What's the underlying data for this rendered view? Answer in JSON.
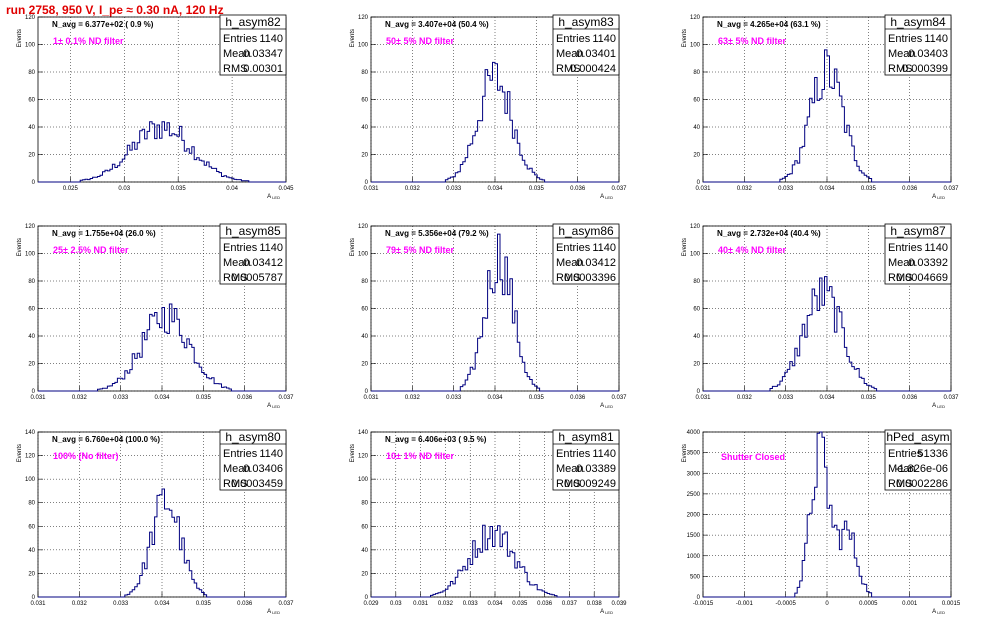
{
  "title": "run 2758,   950 V, I_pe ≈ 0.30 nA, 120 Hz",
  "colors": {
    "title": "#e00000",
    "annotation": "#ff00ff",
    "histogram": "#000080",
    "grid": "#000000"
  },
  "chart_data": [
    {
      "type": "histogram",
      "name": "h_asym82",
      "navg": "N_avg = 6.377e+02 ( 0.9 %)",
      "annotation": "1± 0.1% ND filter",
      "stats": {
        "entries": "1140",
        "mean": "0.03347",
        "rms": "0.00301"
      },
      "xlabel": "A_LED",
      "ylabel": "Events",
      "xlim": [
        0.022,
        0.045
      ],
      "ylim": [
        0,
        120
      ],
      "xticks": [
        "0.025",
        "0.03",
        "0.035",
        "0.04",
        "0.045"
      ],
      "xtick_values": [
        0.025,
        0.03,
        0.035,
        0.04,
        0.045
      ],
      "yticks": [
        "0",
        "20",
        "40",
        "60",
        "80",
        "100",
        "120"
      ],
      "ytick_values": [
        0,
        20,
        40,
        60,
        80,
        100,
        120
      ],
      "grid": true,
      "peak_center": 0.0335,
      "peak_width": 0.0028,
      "peak_height": 40
    },
    {
      "type": "histogram",
      "name": "h_asym83",
      "navg": "N_avg = 3.407e+04 (50.4 %)",
      "annotation": "50± 5% ND filter",
      "stats": {
        "entries": "1140",
        "mean": "0.03401",
        "rms": "0.000424"
      },
      "xlabel": "A_LED",
      "ylabel": "Events",
      "xlim": [
        0.031,
        0.037
      ],
      "ylim": [
        0,
        120
      ],
      "xticks": [
        "0.031",
        "0.032",
        "0.033",
        "0.034",
        "0.035",
        "0.036",
        "0.037"
      ],
      "xtick_values": [
        0.031,
        0.032,
        0.033,
        0.034,
        0.035,
        0.036,
        0.037
      ],
      "yticks": [
        "0",
        "20",
        "40",
        "60",
        "80",
        "100",
        "120"
      ],
      "ytick_values": [
        0,
        20,
        40,
        60,
        80,
        100,
        120
      ],
      "grid": true,
      "peak_center": 0.034,
      "peak_width": 0.00042,
      "peak_height": 75
    },
    {
      "type": "histogram",
      "name": "h_asym84",
      "navg": "N_avg = 4.265e+04 (63.1 %)",
      "annotation": "63± 5% ND filter",
      "stats": {
        "entries": "1140",
        "mean": "0.03403",
        "rms": "0.000399"
      },
      "xlabel": "A_LED",
      "ylabel": "Events",
      "xlim": [
        0.031,
        0.037
      ],
      "ylim": [
        0,
        120
      ],
      "xticks": [
        "0.031",
        "0.032",
        "0.033",
        "0.034",
        "0.035",
        "0.036",
        "0.037"
      ],
      "xtick_values": [
        0.031,
        0.032,
        0.033,
        0.034,
        0.035,
        0.036,
        0.037
      ],
      "yticks": [
        "0",
        "20",
        "40",
        "60",
        "80",
        "100",
        "120"
      ],
      "ytick_values": [
        0,
        20,
        40,
        60,
        80,
        100,
        120
      ],
      "grid": true,
      "peak_center": 0.034,
      "peak_width": 0.0004,
      "peak_height": 80
    },
    {
      "type": "histogram",
      "name": "h_asym85",
      "navg": "N_avg = 1.755e+04 (26.0 %)",
      "annotation": "25± 2.5% ND filter",
      "stats": {
        "entries": "1140",
        "mean": "0.03412",
        "rms": "0.0005787"
      },
      "xlabel": "A_LED",
      "ylabel": "Events",
      "xlim": [
        0.031,
        0.037
      ],
      "ylim": [
        0,
        120
      ],
      "xticks": [
        "0.031",
        "0.032",
        "0.033",
        "0.034",
        "0.035",
        "0.036",
        "0.037"
      ],
      "xtick_values": [
        0.031,
        0.032,
        0.033,
        0.034,
        0.035,
        0.036,
        0.037
      ],
      "yticks": [
        "0",
        "20",
        "40",
        "60",
        "80",
        "100",
        "120"
      ],
      "ytick_values": [
        0,
        20,
        40,
        60,
        80,
        100,
        120
      ],
      "grid": true,
      "peak_center": 0.0341,
      "peak_width": 0.00058,
      "peak_height": 55
    },
    {
      "type": "histogram",
      "name": "h_asym86",
      "navg": "N_avg = 5.356e+04 (79.2 %)",
      "annotation": "79± 5% ND filter",
      "stats": {
        "entries": "1140",
        "mean": "0.03412",
        "rms": "0.0003396"
      },
      "xlabel": "A_LED",
      "ylabel": "Events",
      "xlim": [
        0.031,
        0.037
      ],
      "ylim": [
        0,
        120
      ],
      "xticks": [
        "0.031",
        "0.032",
        "0.033",
        "0.034",
        "0.035",
        "0.036",
        "0.037"
      ],
      "xtick_values": [
        0.031,
        0.032,
        0.033,
        0.034,
        0.035,
        0.036,
        0.037
      ],
      "yticks": [
        "0",
        "20",
        "40",
        "60",
        "80",
        "100",
        "120"
      ],
      "ytick_values": [
        0,
        20,
        40,
        60,
        80,
        100,
        120
      ],
      "grid": true,
      "peak_center": 0.0341,
      "peak_width": 0.00034,
      "peak_height": 98
    },
    {
      "type": "histogram",
      "name": "h_asym87",
      "navg": "N_avg = 2.732e+04 (40.4 %)",
      "annotation": "40± 4% ND filter",
      "stats": {
        "entries": "1140",
        "mean": "0.03392",
        "rms": "0.0004669"
      },
      "xlabel": "A_LED",
      "ylabel": "Events",
      "xlim": [
        0.031,
        0.037
      ],
      "ylim": [
        0,
        120
      ],
      "xticks": [
        "0.031",
        "0.032",
        "0.033",
        "0.034",
        "0.035",
        "0.036",
        "0.037"
      ],
      "xtick_values": [
        0.031,
        0.032,
        0.033,
        0.034,
        0.035,
        0.036,
        0.037
      ],
      "yticks": [
        "0",
        "20",
        "40",
        "60",
        "80",
        "100",
        "120"
      ],
      "ytick_values": [
        0,
        20,
        40,
        60,
        80,
        100,
        120
      ],
      "grid": true,
      "peak_center": 0.0339,
      "peak_width": 0.00047,
      "peak_height": 70
    },
    {
      "type": "histogram",
      "name": "h_asym80",
      "navg": "N_avg = 6.760e+04 (100.0 %)",
      "annotation": "100% (No filter)",
      "stats": {
        "entries": "1140",
        "mean": "0.03406",
        "rms": "0.0003459"
      },
      "xlabel": "A_LED",
      "ylabel": "Events",
      "xlim": [
        0.031,
        0.037
      ],
      "ylim": [
        0,
        140
      ],
      "xticks": [
        "0.031",
        "0.032",
        "0.033",
        "0.034",
        "0.035",
        "0.036",
        "0.037"
      ],
      "xtick_values": [
        0.031,
        0.032,
        0.033,
        0.034,
        0.035,
        0.036,
        0.037
      ],
      "yticks": [
        "0",
        "20",
        "40",
        "60",
        "80",
        "100",
        "120",
        "140"
      ],
      "ytick_values": [
        0,
        20,
        40,
        60,
        80,
        100,
        120,
        140
      ],
      "grid": true,
      "peak_center": 0.0341,
      "peak_width": 0.00035,
      "peak_height": 82
    },
    {
      "type": "histogram",
      "name": "h_asym81",
      "navg": "N_avg = 6.406e+03 ( 9.5 %)",
      "annotation": "10± 1% ND filter",
      "stats": {
        "entries": "1140",
        "mean": "0.03389",
        "rms": "0.0009249"
      },
      "xlabel": "A_LED",
      "ylabel": "Events",
      "xlim": [
        0.029,
        0.039
      ],
      "ylim": [
        0,
        140
      ],
      "xticks": [
        "0.029",
        "0.03",
        "0.031",
        "0.032",
        "0.033",
        "0.034",
        "0.035",
        "0.036",
        "0.037",
        "0.038",
        "0.039"
      ],
      "xtick_values": [
        0.029,
        0.03,
        0.031,
        0.032,
        0.033,
        0.034,
        0.035,
        0.036,
        0.037,
        0.038,
        0.039
      ],
      "yticks": [
        "0",
        "20",
        "40",
        "60",
        "80",
        "100",
        "120",
        "140"
      ],
      "ytick_values": [
        0,
        20,
        40,
        60,
        80,
        100,
        120,
        140
      ],
      "grid": true,
      "peak_center": 0.0339,
      "peak_width": 0.00092,
      "peak_height": 55
    },
    {
      "type": "histogram",
      "name": "hPed_asym",
      "annotation": "Shutter Closed",
      "stats": {
        "entries": "51336",
        "mean": "-1.826e-06",
        "rms": "0.0002286"
      },
      "xlabel": "A_LED",
      "ylabel": "Events",
      "xlim": [
        -0.0015,
        0.0015
      ],
      "ylim": [
        0,
        4000
      ],
      "xticks": [
        "-0.0015",
        "-0.001",
        "-0.0005",
        "0",
        "0.0005",
        "0.001",
        "0.0015"
      ],
      "xtick_values": [
        -0.0015,
        -0.001,
        -0.0005,
        0,
        0.0005,
        0.001,
        0.0015
      ],
      "yticks": [
        "0",
        "500",
        "1000",
        "1500",
        "2000",
        "2500",
        "3000",
        "3500",
        "4000"
      ],
      "ytick_values": [
        0,
        500,
        1000,
        1500,
        2000,
        2500,
        3000,
        3500,
        4000
      ],
      "grid": true,
      "bimodal": true,
      "peak_center": -9e-05,
      "peak_width": 0.00011,
      "peak_height": 3500,
      "second_center": 0.00024,
      "second_width": 0.00012,
      "second_height": 1550
    }
  ]
}
